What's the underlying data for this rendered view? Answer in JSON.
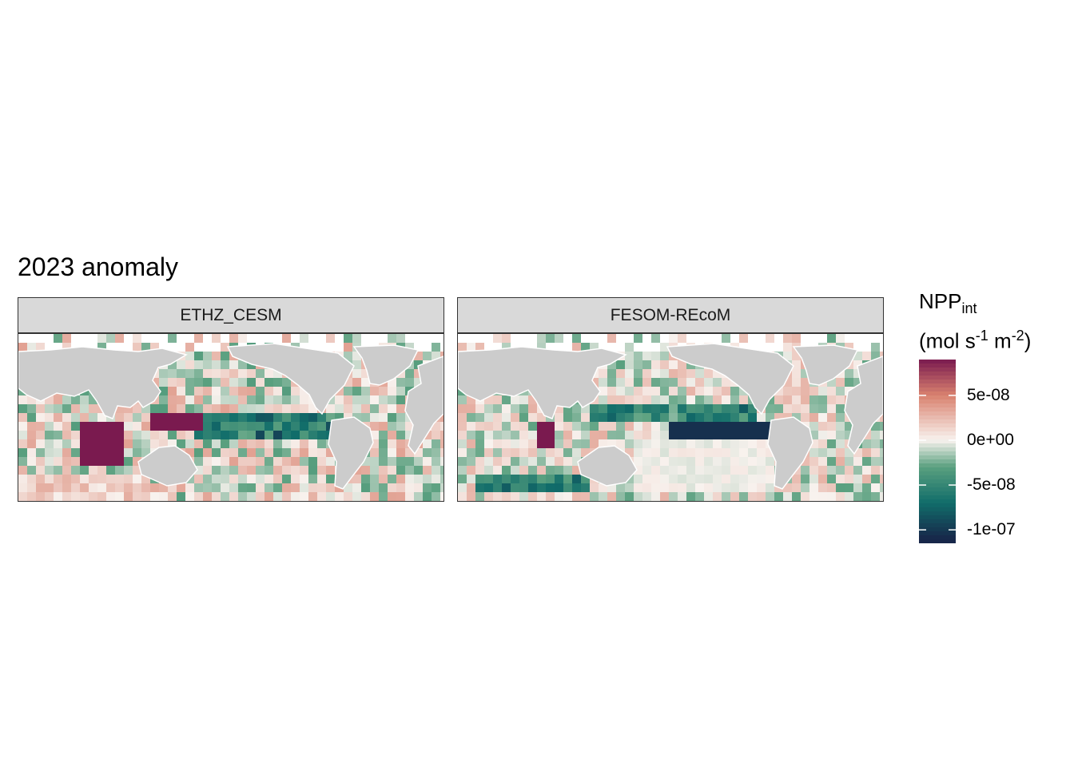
{
  "chart_data": {
    "type": "heatmap",
    "title": "2023 anomaly",
    "facets": [
      "ETHZ_CESM",
      "FESOM-REcoM"
    ],
    "legend": {
      "title": "NPP",
      "title_sub": "int",
      "units_parts": [
        "(mol s",
        "-1",
        " m",
        "-2",
        ")"
      ],
      "ticks": [
        "5e-08",
        "0e+00",
        "-5e-08",
        "-1e-07"
      ],
      "tick_values": [
        5e-08,
        0,
        -5e-08,
        -1e-07
      ],
      "range": [
        -1.15e-07,
        9e-08
      ],
      "placement": "right"
    },
    "colors": {
      "high": "#7a1a4f",
      "pos": "#d9826f",
      "zero": "#f8f2ee",
      "neg": "#5aa07f",
      "low_mid": "#116d6a",
      "low": "#17274a",
      "land": "#cccccc"
    },
    "grid": false
  }
}
